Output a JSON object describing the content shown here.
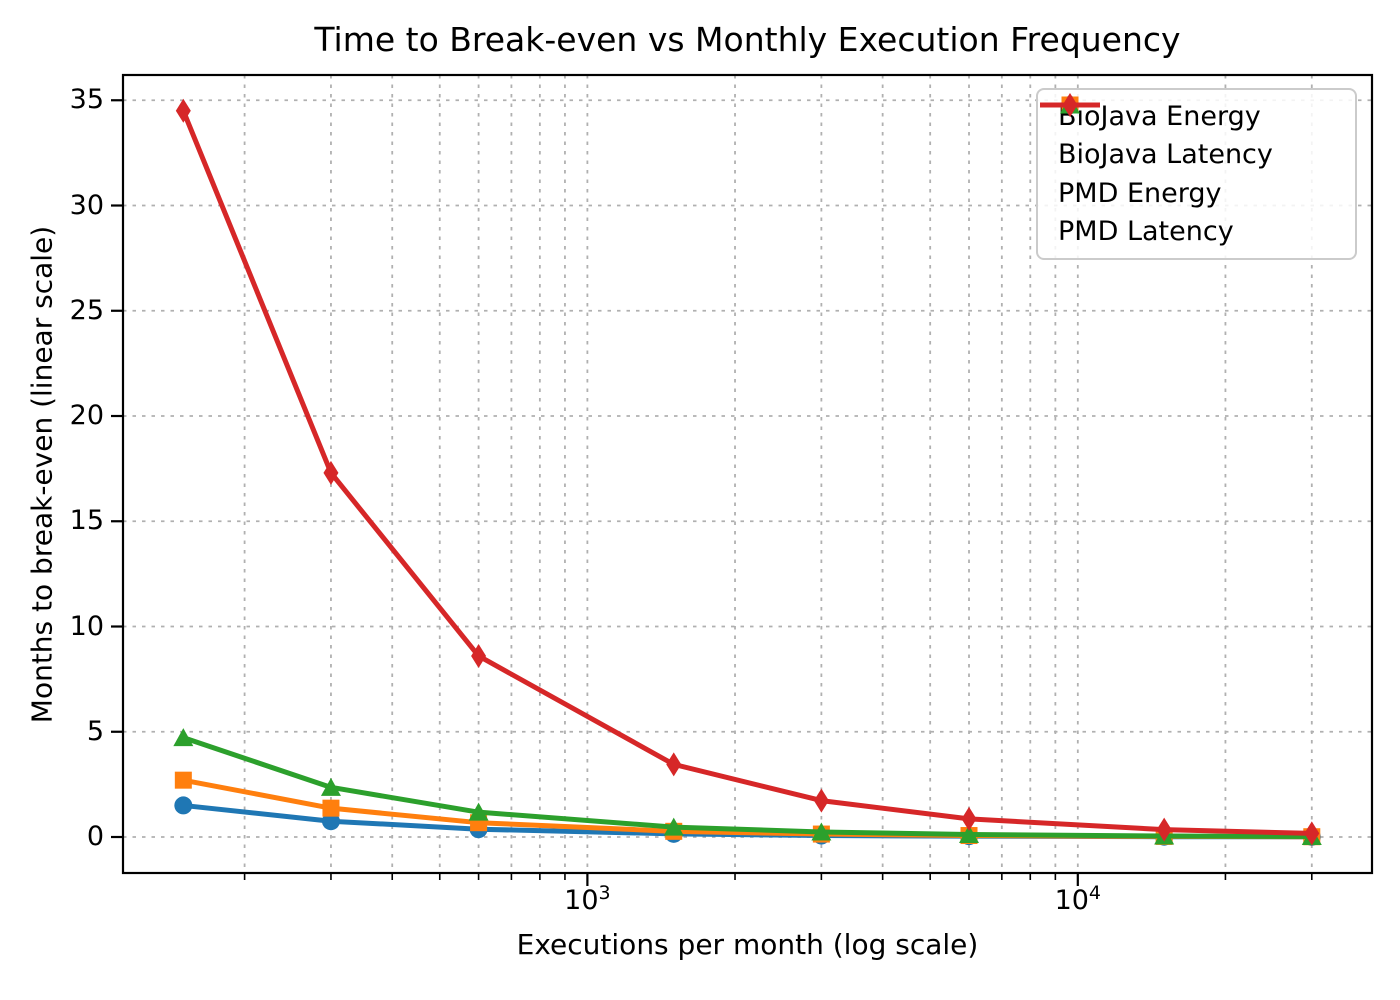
{
  "chart_data": {
    "type": "line",
    "title": "Time to Break-even vs Monthly Execution Frequency",
    "xlabel": "Executions per month (log scale)",
    "ylabel": "Months to break-even (linear scale)",
    "x_scale": "log",
    "y_scale": "linear",
    "grid": true,
    "grid_style": "dashed",
    "grid_color": "#b0b0b0",
    "axis_color": "#000000",
    "background_color": "#ffffff",
    "legend_position": "upper right",
    "xlim": [
      113,
      39800
    ],
    "ylim": [
      -1.71,
      36.2
    ],
    "y_ticks": [
      0,
      5,
      10,
      15,
      20,
      25,
      30,
      35
    ],
    "x_major_ticks": [
      {
        "value": 1000,
        "label_base": "10",
        "label_exponent": "3"
      },
      {
        "value": 10000,
        "label_base": "10",
        "label_exponent": "4"
      }
    ],
    "x": [
      150,
      300,
      600,
      1500,
      3000,
      6000,
      15000,
      30000
    ],
    "series": [
      {
        "name": "BioJava Energy",
        "color": "#1f77b4",
        "marker": "circle",
        "values": [
          1.5,
          0.75,
          0.37,
          0.15,
          0.07,
          0.04,
          0.015,
          0.007
        ]
      },
      {
        "name": "BioJava Latency",
        "color": "#ff7f0e",
        "marker": "square",
        "values": [
          2.7,
          1.37,
          0.68,
          0.27,
          0.14,
          0.07,
          0.027,
          0.014
        ]
      },
      {
        "name": "PMD Energy",
        "color": "#2ca02c",
        "marker": "triangle",
        "values": [
          4.72,
          2.36,
          1.18,
          0.47,
          0.24,
          0.12,
          0.047,
          0.024
        ]
      },
      {
        "name": "PMD Latency",
        "color": "#d62728",
        "marker": "diamond",
        "values": [
          34.5,
          17.3,
          8.6,
          3.45,
          1.73,
          0.86,
          0.35,
          0.17
        ]
      }
    ]
  }
}
